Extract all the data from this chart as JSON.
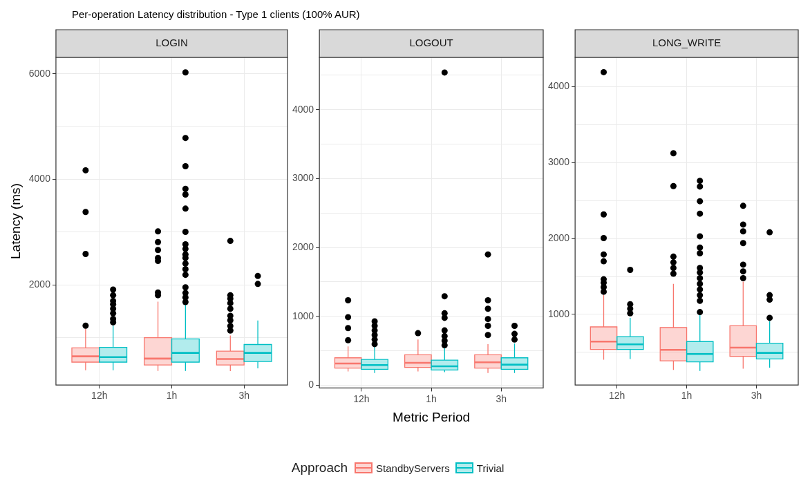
{
  "chart_data": [
    {
      "type": "box",
      "title": "LOGIN",
      "ylabel": "Latency (ms)",
      "annotations": [
        "Per-operation Latency distribution - Type 1 clients (100% AUR)"
      ],
      "categories": [
        "12h",
        "1h",
        "3h"
      ],
      "ylim": [
        100,
        6310
      ],
      "yticks": [
        {
          "value": 1000,
          "label": null
        },
        2000,
        {
          "value": 3000,
          "label": null
        },
        4000,
        {
          "value": 5000,
          "label": null
        },
        6000
      ],
      "grid": true,
      "marker": "circle",
      "series": [
        {
          "color": "#f8766d",
          "boxes": [
            {
              "low": 380,
              "q1": 535,
              "median": 645,
              "q3": 805,
              "high": 1170,
              "outliers": [
                1225,
                2585,
                3380,
                4170
              ]
            },
            {
              "low": 367,
              "q1": 482,
              "median": 602,
              "q3": 997,
              "high": 1682,
              "outliers": [
                1803,
                1855,
                2454,
                2510,
                2660,
                2810,
                3012
              ]
            },
            {
              "low": 366,
              "q1": 482,
              "median": 593,
              "q3": 743,
              "high": 1040,
              "outliers": [
                1134,
                1220,
                1327,
                1413,
                1546,
                1652,
                1738,
                1803,
                2832
              ]
            }
          ]
        },
        {
          "color": "#00bfc4",
          "boxes": [
            {
              "low": 380,
              "q1": 535,
              "median": 630,
              "q3": 815,
              "high": 1225,
              "outliers": [
                1289,
                1353,
                1460,
                1546,
                1631,
                1695,
                1803,
                1910
              ]
            },
            {
              "low": 367,
              "q1": 535,
              "median": 710,
              "q3": 975,
              "high": 1631,
              "outliers": [
                1674,
                1760,
                1846,
                1953,
                2189,
                2296,
                2403,
                2510,
                2574,
                2681,
                2767,
                3003,
                3444,
                3711,
                3818,
                4247,
                4782,
                6025
              ]
            },
            {
              "low": 418,
              "q1": 546,
              "median": 710,
              "q3": 869,
              "high": 1324,
              "outliers": [
                2017,
                2167
              ]
            }
          ]
        }
      ]
    },
    {
      "type": "box",
      "title": "LOGOUT",
      "xlabel": "Metric Period",
      "legend_title": "Approach",
      "legend": "bottom",
      "categories": [
        "12h",
        "1h",
        "3h"
      ],
      "ylim": [
        -40,
        4760
      ],
      "yticks": [
        0,
        {
          "value": 500,
          "label": null
        },
        1000,
        {
          "value": 1500,
          "label": null
        },
        2000,
        {
          "value": 2500,
          "label": null
        },
        3000,
        {
          "value": 3500,
          "label": null
        },
        4000,
        {
          "value": 4500,
          "label": null
        }
      ],
      "grid": true,
      "marker": "circle",
      "series": [
        {
          "name": "StandbyServers",
          "color": "#f8766d",
          "boxes": [
            {
              "low": 199,
              "q1": 249,
              "median": 315,
              "q3": 398,
              "high": 564,
              "outliers": [
                653,
                829,
                988,
                1233
              ]
            },
            {
              "low": 199,
              "q1": 259,
              "median": 325,
              "q3": 441,
              "high": 663,
              "outliers": [
                756
              ]
            },
            {
              "low": 176,
              "q1": 249,
              "median": 332,
              "q3": 441,
              "high": 597,
              "outliers": [
                729,
                862,
                961,
                1110,
                1233,
                1899
              ]
            }
          ]
        },
        {
          "name": "Trivial",
          "color": "#00bfc4",
          "boxes": [
            {
              "low": 176,
              "q1": 232,
              "median": 292,
              "q3": 375,
              "high": 564,
              "outliers": [
                597,
                663,
                729,
                796,
                862,
                928
              ]
            },
            {
              "low": 189,
              "q1": 222,
              "median": 275,
              "q3": 365,
              "high": 574,
              "outliers": [
                580,
                646,
                713,
                796,
                978,
                1044,
                1292,
                4540
              ]
            },
            {
              "low": 176,
              "q1": 232,
              "median": 299,
              "q3": 398,
              "high": 607,
              "outliers": [
                663,
                746,
                862
              ]
            }
          ]
        }
      ]
    },
    {
      "type": "box",
      "title": "LONG_WRITE",
      "categories": [
        "12h",
        "1h",
        "3h"
      ],
      "ylim": [
        70,
        4385
      ],
      "yticks": [
        {
          "value": 500,
          "label": null
        },
        1000,
        {
          "value": 1500,
          "label": null
        },
        2000,
        {
          "value": 2500,
          "label": null
        },
        3000,
        {
          "value": 3500,
          "label": null
        },
        4000
      ],
      "grid": true,
      "marker": "circle",
      "series": [
        {
          "color": "#f8766d",
          "boxes": [
            {
              "low": 405,
              "q1": 539,
              "median": 643,
              "q3": 836,
              "high": 1254,
              "outliers": [
                1299,
                1359,
                1418,
                1463,
                1700,
                1790,
                2005,
                2317,
                4190
              ]
            },
            {
              "low": 270,
              "q1": 390,
              "median": 533,
              "q3": 827,
              "high": 1403,
              "outliers": [
                1537,
                1612,
                1686,
                1761,
                2690,
                3122
              ]
            },
            {
              "low": 285,
              "q1": 449,
              "median": 563,
              "q3": 851,
              "high": 1433,
              "outliers": [
                1478,
                1567,
                1656,
                1939,
                2094,
                2184,
                2430
              ]
            }
          ]
        },
        {
          "color": "#00bfc4",
          "boxes": [
            {
              "low": 414,
              "q1": 539,
              "median": 607,
              "q3": 708,
              "high": 955,
              "outliers": [
                1016,
                1076,
                1135,
                1587
              ]
            },
            {
              "low": 255,
              "q1": 375,
              "median": 479,
              "q3": 643,
              "high": 1016,
              "outliers": [
                1031,
                1180,
                1254,
                1329,
                1403,
                1478,
                1552,
                1612,
                1805,
                1880,
                2029,
                2327,
                2491,
                2684,
                2759
              ]
            },
            {
              "low": 300,
              "q1": 414,
              "median": 494,
              "q3": 622,
              "high": 911,
              "outliers": [
                955,
                1195,
                1254,
                2082
              ]
            }
          ]
        }
      ]
    }
  ]
}
